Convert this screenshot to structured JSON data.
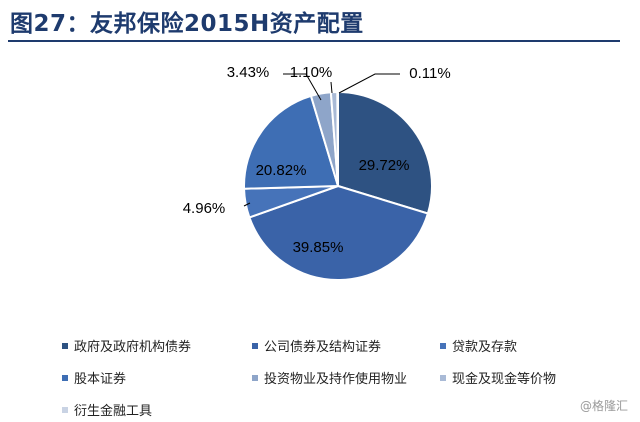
{
  "header": {
    "title": "图27：友邦保险2015H资产配置"
  },
  "chart_data": {
    "type": "pie",
    "title": "图27：友邦保险2015H资产配置",
    "slices": [
      {
        "name": "政府及政府机构债券",
        "value": 29.72,
        "label": "29.72%",
        "color": "#2e5282"
      },
      {
        "name": "公司债券及结构证券",
        "value": 39.85,
        "label": "39.85%",
        "color": "#3a63a8"
      },
      {
        "name": "贷款及存款",
        "value": 4.96,
        "label": "4.96%",
        "color": "#4673b9"
      },
      {
        "name": "股本证券",
        "value": 20.82,
        "label": "20.82%",
        "color": "#3e6eb4"
      },
      {
        "name": "投资物业及持作使用物业",
        "value": 3.43,
        "label": "3.43%",
        "color": "#8ea5c9"
      },
      {
        "name": "现金及现金等价物",
        "value": 1.1,
        "label": "1.10%",
        "color": "#a9bad6"
      },
      {
        "name": "衍生金融工具",
        "value": 0.11,
        "label": "0.11%",
        "color": "#c9d3e4"
      }
    ],
    "legend_position": "bottom"
  },
  "watermark": "@格隆汇"
}
